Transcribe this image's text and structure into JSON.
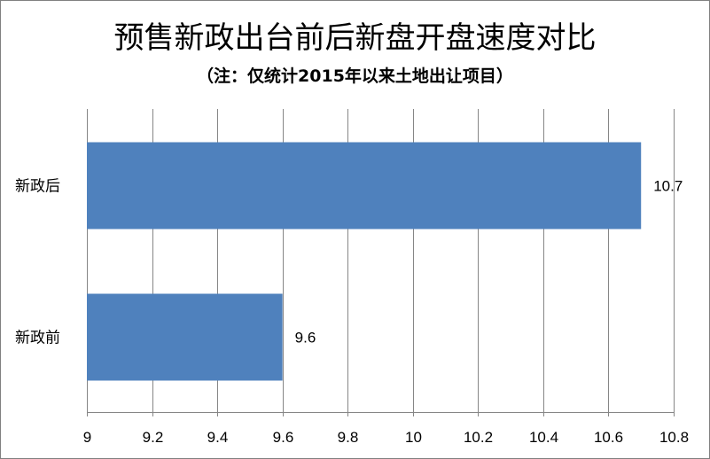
{
  "chart_data": {
    "type": "bar",
    "orientation": "horizontal",
    "title": "预售新政出台前后新盘开盘速度对比",
    "subtitle": "（注：仅统计2015年以来土地出让项目）",
    "categories": [
      "新政后",
      "新政前"
    ],
    "values": [
      10.7,
      9.6
    ],
    "data_labels": [
      "10.7",
      "9.6"
    ],
    "xlim": [
      9,
      10.8
    ],
    "x_ticks": [
      9,
      9.2,
      9.4,
      9.6,
      9.8,
      10,
      10.2,
      10.4,
      10.6,
      10.8
    ],
    "x_tick_labels": [
      "9",
      "9.2",
      "9.4",
      "9.6",
      "9.8",
      "10",
      "10.2",
      "10.4",
      "10.6",
      "10.8"
    ],
    "grid": "vertical",
    "legend": "none",
    "bar_color": "#4F81BD",
    "grid_color": "#868686"
  }
}
